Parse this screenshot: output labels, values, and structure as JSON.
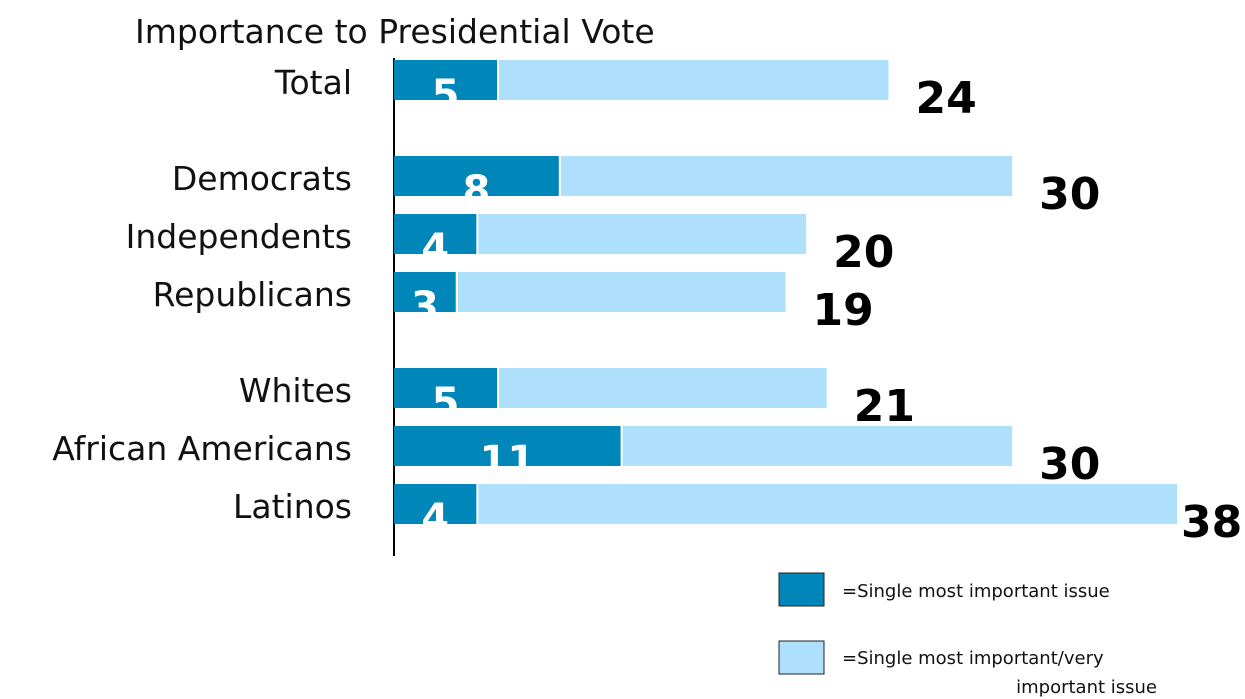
{
  "chart_data": {
    "type": "bar",
    "orientation": "horizontal",
    "stacked": false,
    "title": "Importance to Presidential Vote",
    "categories": [
      "Total",
      "Democrats",
      "Independents",
      "Republicans",
      "Whites",
      "African Americans",
      "Latinos"
    ],
    "groups": [
      [
        "Total"
      ],
      [
        "Democrats",
        "Independents",
        "Republicans"
      ],
      [
        "Whites",
        "African Americans",
        "Latinos"
      ]
    ],
    "series": [
      {
        "name": "=Single most important issue",
        "color": "#0086b8",
        "values": [
          5,
          8,
          4,
          3,
          5,
          11,
          4
        ]
      },
      {
        "name": "=Single most important/very important issue",
        "color": "#aee0fb",
        "values": [
          24,
          30,
          20,
          19,
          21,
          30,
          38
        ]
      }
    ],
    "xlim": [
      0,
      38
    ],
    "grid": false,
    "legend": {
      "placement": "bottom-right"
    }
  }
}
